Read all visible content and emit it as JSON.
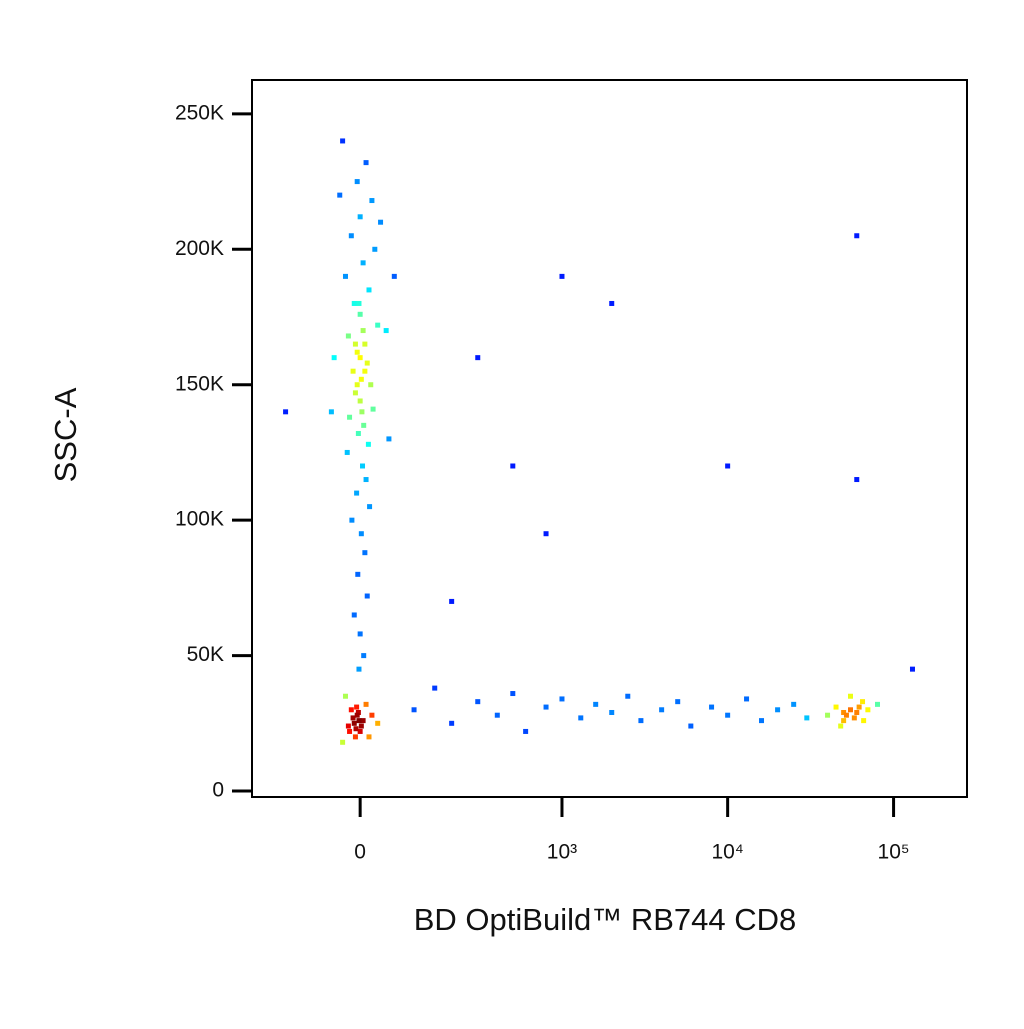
{
  "chart_data": {
    "type": "scatter",
    "x_label": "BD OptiBuild™ RB744 CD8",
    "y_label": "SSC-A",
    "xscale": "biexponential",
    "color_by": "density",
    "xlim": [
      -260,
      277000
    ],
    "ylim": [
      -2200,
      262500
    ],
    "xticks": [
      {
        "value": 0,
        "label": "0"
      },
      {
        "value": 1000,
        "label": "10³"
      },
      {
        "value": 10000,
        "label": "10⁴"
      },
      {
        "value": 100000,
        "label": "10⁵"
      }
    ],
    "yticks": [
      {
        "value": 0,
        "label": "0"
      },
      {
        "value": 50000,
        "label": "50K"
      },
      {
        "value": 100000,
        "label": "100K"
      },
      {
        "value": 150000,
        "label": "150K"
      },
      {
        "value": 200000,
        "label": "200K"
      },
      {
        "value": 250000,
        "label": "250K"
      }
    ],
    "x": [
      -30,
      10,
      -5,
      20,
      0,
      -15,
      25,
      5,
      -25,
      15,
      -10,
      0,
      30,
      -20,
      8,
      -5,
      12,
      -12,
      2,
      18,
      -8,
      0,
      22,
      -18,
      6,
      -3,
      14,
      -22,
      4,
      10,
      -6,
      16,
      -14,
      2,
      8,
      -4,
      12,
      -10,
      0,
      6,
      -2,
      45,
      -45,
      60,
      -50,
      50,
      35,
      -35,
      0,
      5,
      -5,
      3,
      -2,
      8,
      -8,
      -10,
      -5,
      0,
      -15,
      5,
      -8,
      -20,
      10,
      -12,
      -3,
      2,
      -18,
      -6,
      15,
      -25,
      20,
      -30,
      30,
      -2,
      -7,
      100,
      150,
      200,
      300,
      400,
      500,
      600,
      800,
      1000,
      1300,
      1600,
      2000,
      2500,
      3000,
      4000,
      5000,
      6000,
      8000,
      10000,
      13000,
      16000,
      20000,
      25000,
      30000,
      40000,
      45000,
      50000,
      55000,
      60000,
      65000,
      50000,
      58000,
      62000,
      48000,
      70000,
      55000,
      52000,
      66000,
      80000,
      300,
      500,
      1000,
      2000,
      10000,
      60000,
      60000,
      200,
      130000,
      800,
      -150
    ],
    "values": [
      240000,
      232000,
      225000,
      218000,
      212000,
      205000,
      200000,
      195000,
      190000,
      185000,
      180000,
      176000,
      172000,
      168000,
      165000,
      162000,
      158000,
      155000,
      152000,
      150000,
      147000,
      144000,
      141000,
      138000,
      135000,
      132000,
      128000,
      125000,
      120000,
      115000,
      110000,
      105000,
      100000,
      95000,
      88000,
      80000,
      72000,
      65000,
      58000,
      50000,
      45000,
      170000,
      160000,
      190000,
      140000,
      130000,
      210000,
      220000,
      160000,
      170000,
      150000,
      140000,
      180000,
      155000,
      165000,
      25000,
      28000,
      22000,
      30000,
      26000,
      20000,
      24000,
      32000,
      27000,
      29000,
      24000,
      22000,
      31000,
      20000,
      35000,
      28000,
      18000,
      25000,
      26000,
      23000,
      30000,
      38000,
      25000,
      33000,
      28000,
      36000,
      22000,
      31000,
      34000,
      27000,
      32000,
      29000,
      35000,
      26000,
      30000,
      33000,
      24000,
      31000,
      28000,
      34000,
      26000,
      30000,
      32000,
      27000,
      28000,
      31000,
      26000,
      30000,
      29000,
      33000,
      29000,
      27000,
      31000,
      24000,
      30000,
      35000,
      28000,
      26000,
      32000,
      160000,
      120000,
      190000,
      180000,
      120000,
      205000,
      115000,
      70000,
      45000,
      95000,
      140000
    ]
  }
}
